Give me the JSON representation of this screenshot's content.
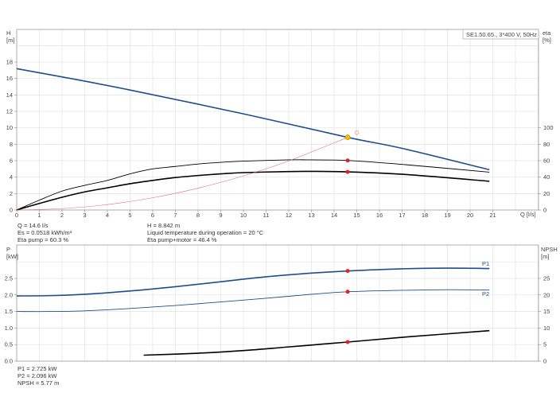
{
  "legend_box": "SE1.50.65., 3*400 V, 50Hz",
  "colors": {
    "head": "#1f4e8c",
    "power": "#1f4e8c",
    "eta": "#000000",
    "system": "#e07070",
    "duty_point": "#e82020",
    "operating_marker": "#f5c000"
  },
  "chart_data": [
    {
      "type": "line",
      "xlabel": "Q [l/s]",
      "ylabel": "H\n[m]",
      "ylabel_right": "eta\n[%]",
      "xlim": [
        0,
        23
      ],
      "ylim": [
        0,
        22
      ],
      "ylim_right": [
        0,
        220
      ],
      "xticks": [
        0,
        1,
        2,
        3,
        4,
        5,
        6,
        7,
        8,
        9,
        10,
        11,
        12,
        13,
        14,
        15,
        16,
        17,
        18,
        19,
        20,
        21
      ],
      "yticks": [
        0,
        2,
        4,
        6,
        8,
        10,
        12,
        14,
        16,
        18
      ],
      "yticks_right": [
        0,
        20,
        40,
        60,
        80,
        100
      ],
      "grid": true,
      "series": [
        {
          "key": "head",
          "axis": "left",
          "x": [
            0,
            2,
            5,
            10,
            14.6,
            17,
            20.85
          ],
          "y": [
            17.2,
            16.2,
            14.6,
            11.7,
            8.842,
            7.5,
            4.9
          ]
        },
        {
          "key": "eta_pump",
          "axis": "right",
          "x": [
            0,
            1,
            2,
            3,
            4,
            5,
            6,
            7,
            8,
            9,
            10,
            12,
            13,
            14.6,
            17,
            20.85
          ],
          "y": [
            0,
            12,
            23,
            30,
            36,
            44,
            50,
            53,
            56,
            58,
            59.5,
            61,
            61,
            60.3,
            55.5,
            46
          ]
        },
        {
          "key": "eta_pump_motor",
          "axis": "right",
          "x": [
            0,
            1,
            2,
            3,
            4,
            5,
            6,
            7,
            8,
            9,
            10,
            12,
            13,
            14.6,
            17,
            20.85
          ],
          "y": [
            0,
            8,
            15.5,
            22,
            27,
            32,
            36,
            39.5,
            42,
            44,
            45.5,
            46.8,
            47,
            46.4,
            43.5,
            35
          ]
        },
        {
          "key": "system_curve",
          "axis": "left",
          "x": [
            0,
            2,
            4,
            6,
            8,
            10,
            12,
            14.6
          ],
          "y": [
            0,
            0.17,
            0.66,
            1.49,
            2.66,
            4.15,
            5.98,
            8.842
          ]
        }
      ],
      "markers": [
        {
          "key": "operating_point",
          "axis": "left",
          "x": 14.6,
          "y": 8.842
        },
        {
          "key": "eta_pump_point",
          "axis": "right",
          "x": 14.6,
          "y": 60.3
        },
        {
          "key": "eta_pump_motor_point",
          "axis": "right",
          "x": 14.6,
          "y": 46.4
        },
        {
          "key": "system_end_circle",
          "axis": "left",
          "x": 15.0,
          "y": 9.4
        }
      ],
      "info": {
        "q": "Q = 14.6 l/s",
        "es": "Es = 0.0518 kWh/m³",
        "eta_pump": "Eta pump = 60.3 %",
        "h": "H = 8.842 m",
        "temp": "Liquid temperature during operation = 20 °C",
        "eta_pump_motor": "Eta pump+motor = 46.4 %"
      }
    },
    {
      "type": "line",
      "ylabel": "P\n[kW]",
      "ylabel_right": "NPSH\n[m]",
      "xlim": [
        0,
        23
      ],
      "ylim": [
        0,
        3.5
      ],
      "ylim_right": [
        0,
        35
      ],
      "yticks": [
        0.0,
        0.5,
        1.0,
        1.5,
        2.0,
        2.5
      ],
      "ytick_labels": [
        "0.0",
        "0.5",
        "1.0",
        "1.5",
        "2.0",
        "2.5"
      ],
      "yticks_right": [
        0,
        5,
        10,
        15,
        20,
        25
      ],
      "grid": true,
      "series": [
        {
          "key": "P1",
          "name": "P1",
          "axis": "left",
          "x": [
            0,
            1.5,
            3,
            5,
            7,
            9,
            11,
            13,
            14.6,
            17,
            19,
            20.85
          ],
          "y": [
            1.97,
            1.98,
            2.02,
            2.12,
            2.25,
            2.4,
            2.55,
            2.66,
            2.725,
            2.79,
            2.81,
            2.8
          ]
        },
        {
          "key": "P2",
          "name": "P2",
          "axis": "left",
          "x": [
            0,
            1.5,
            3,
            5,
            7,
            9,
            11,
            13,
            14.6,
            17,
            19,
            20.85
          ],
          "y": [
            1.5,
            1.5,
            1.52,
            1.59,
            1.68,
            1.79,
            1.9,
            2.02,
            2.096,
            2.14,
            2.16,
            2.15
          ]
        },
        {
          "key": "NPSH",
          "axis": "right",
          "x": [
            5.6,
            8,
            10,
            12,
            14.6,
            17,
            20.85
          ],
          "y": [
            1.8,
            2.4,
            3.2,
            4.3,
            5.77,
            7.2,
            9.2
          ]
        }
      ],
      "markers": [
        {
          "key": "P1_point",
          "axis": "left",
          "x": 14.6,
          "y": 2.725
        },
        {
          "key": "P2_point",
          "axis": "left",
          "x": 14.6,
          "y": 2.096
        },
        {
          "key": "NPSH_point",
          "axis": "right",
          "x": 14.6,
          "y": 5.77
        }
      ],
      "info": {
        "p1": "P1 = 2.725 kW",
        "p2": "P2 = 2.096 kW",
        "npsh": "NPSH = 5.77 m"
      }
    }
  ]
}
